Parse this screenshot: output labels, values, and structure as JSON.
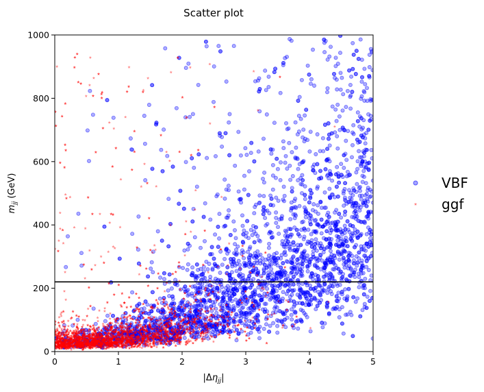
{
  "chart_data": {
    "type": "scatter",
    "title": "Scatter plot",
    "xlabel": "|Δη_jj|",
    "ylabel": "m_jj (GeV)",
    "xlim": [
      0,
      5
    ],
    "ylim": [
      0,
      1000
    ],
    "x_ticks": [
      "0",
      "1",
      "2",
      "3",
      "4",
      "5"
    ],
    "y_ticks": [
      "0",
      "200",
      "400",
      "600",
      "800",
      "1000"
    ],
    "x_tick_values": [
      0,
      1,
      2,
      3,
      4,
      5
    ],
    "y_tick_values": [
      0,
      200,
      400,
      600,
      800,
      1000
    ],
    "grid": false,
    "legend_position": "right",
    "threshold_line": {
      "y": 220,
      "color": "#000000"
    },
    "series": [
      {
        "name": "VBF",
        "color": "#0000ff",
        "marker": "circle",
        "approx_count": 9000,
        "distribution": "broad; dense band rising with |Δη_jj|, core near (3.5-4.5, 300-700), spread up to 1000 GeV"
      },
      {
        "name": "ggf",
        "color": "#ff0000",
        "marker": "star",
        "approx_count": 9000,
        "distribution": "concentrated at low m_jj; densest near (0-1.5, 0-150), thins out above 220 GeV"
      }
    ]
  }
}
